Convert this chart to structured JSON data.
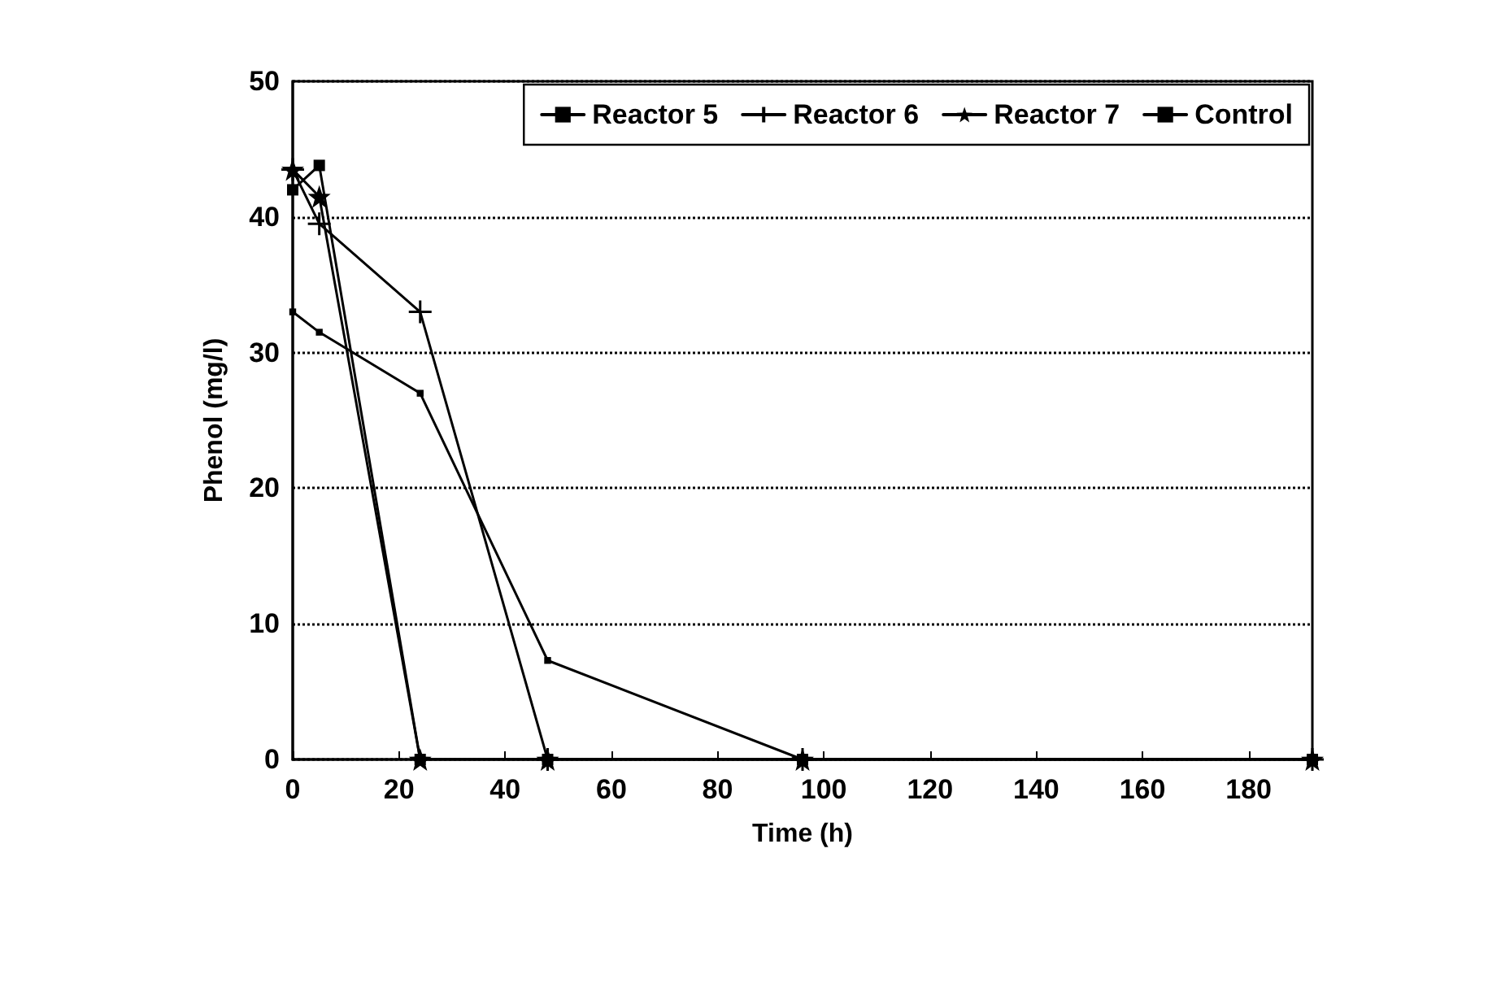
{
  "chart_data": {
    "type": "line",
    "xlabel": "Time (h)",
    "ylabel": "Phenol (mg/l)",
    "xlim": [
      0,
      192
    ],
    "xticks": [
      0,
      20,
      40,
      60,
      80,
      100,
      120,
      140,
      160,
      180
    ],
    "ylim": [
      0,
      50
    ],
    "yticks": [
      0,
      10,
      20,
      30,
      40,
      50
    ],
    "grid": "y",
    "legend": "top right",
    "line_style": "solid",
    "x": [
      0,
      5,
      24,
      48,
      96,
      192
    ],
    "series": [
      {
        "name": "Reactor 5",
        "color": "#000000",
        "marker": "square",
        "values": [
          33,
          31.5,
          27,
          7.3,
          0,
          0
        ]
      },
      {
        "name": "Reactor 6",
        "color": "#000000",
        "marker": "cross",
        "values": [
          43.5,
          39.5,
          33,
          0,
          0,
          0
        ]
      },
      {
        "name": "Reactor 7",
        "color": "#000000",
        "marker": "star",
        "values": [
          43.5,
          41.5,
          0,
          0,
          0,
          0
        ]
      },
      {
        "name": "Control",
        "color": "#000000",
        "marker": "square",
        "values": [
          42,
          43.8,
          0,
          0,
          0,
          0
        ]
      }
    ]
  }
}
